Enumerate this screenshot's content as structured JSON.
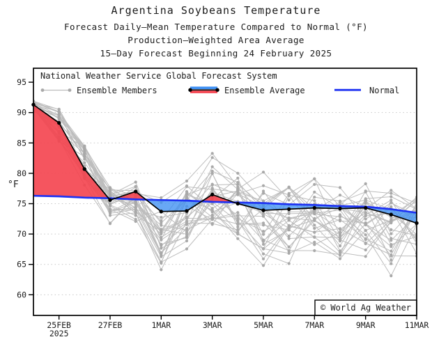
{
  "titles": {
    "line1": "Argentina Soybeans Temperature",
    "line2": "Forecast Daily—Mean Temperature Compared to Normal (°F)",
    "line3": "Production—Weighted Area Average",
    "line4": "15—Day Forecast Beginning 24 February 2025"
  },
  "legend": {
    "header": "National Weather Service Global Forecast System",
    "ensemble_members_label": "Ensemble Members",
    "ensemble_average_label": "Ensemble Average",
    "normal_label": "Normal"
  },
  "watermark": "© World Ag Weather",
  "axes": {
    "y_unit_label": "°F",
    "y_ticks": [
      95,
      90,
      85,
      80,
      75,
      70,
      65,
      60
    ],
    "y_gridlines": [
      90,
      85,
      80,
      75,
      70,
      65,
      60
    ],
    "ylim": [
      56.6,
      97.3
    ],
    "x_tick_labels": [
      "25FEB",
      "27FEB",
      "1MAR",
      "3MAR",
      "5MAR",
      "7MAR",
      "9MAR",
      "11MAR"
    ],
    "x_tick_days": [
      1,
      3,
      5,
      7,
      9,
      11,
      13,
      15
    ],
    "x_year_label": "2025"
  },
  "colors": {
    "above_normal_fill": "#f4424e",
    "below_normal_fill": "#3d8ff2",
    "normal_line": "#1e32f2",
    "ensemble_average_line": "#000000",
    "ensemble_member_line": "#bdbdbd",
    "ensemble_member_dot": "#a9a9a9",
    "gridline": "#c6c6c6",
    "axis": "#000000"
  },
  "chart_data": {
    "type": "line",
    "x_dates": [
      "24FEB2025",
      "25FEB2025",
      "26FEB2025",
      "27FEB2025",
      "28FEB2025",
      "1MAR2025",
      "2MAR2025",
      "3MAR2025",
      "4MAR2025",
      "5MAR2025",
      "6MAR2025",
      "7MAR2025",
      "8MAR2025",
      "9MAR2025",
      "10MAR2025",
      "11MAR2025"
    ],
    "series": [
      {
        "name": "Ensemble Average",
        "values": [
          91.3,
          88.3,
          80.7,
          75.6,
          77.0,
          73.7,
          73.8,
          76.5,
          75.0,
          73.9,
          74.1,
          74.3,
          74.2,
          74.3,
          73.2,
          71.8
        ]
      },
      {
        "name": "Normal",
        "values": [
          76.3,
          76.2,
          76.0,
          75.9,
          75.7,
          75.6,
          75.5,
          75.3,
          75.2,
          75.1,
          74.9,
          74.8,
          74.6,
          74.5,
          74.1,
          73.5
        ]
      }
    ],
    "ensemble_members": {
      "count": 30,
      "envelope_min": [
        90.2,
        84.0,
        77.0,
        71.0,
        70.5,
        62.0,
        66.0,
        66.0,
        66.5,
        63.0,
        64.0,
        66.0,
        63.0,
        65.0,
        60.5,
        62.0
      ],
      "envelope_max": [
        92.0,
        91.5,
        86.5,
        79.0,
        80.0,
        79.0,
        80.5,
        85.0,
        82.5,
        83.0,
        81.0,
        81.0,
        80.5,
        80.5,
        81.0,
        80.0
      ]
    },
    "fills": "red where Ensemble Average is above Normal, blue where below",
    "title": "Argentina Soybeans Temperature",
    "ylabel": "°F",
    "ylim": [
      56.6,
      97.3
    ],
    "grid": "dotted horizontal lines every 5°F from 60 to 90",
    "legend_position": "inside top-left"
  }
}
